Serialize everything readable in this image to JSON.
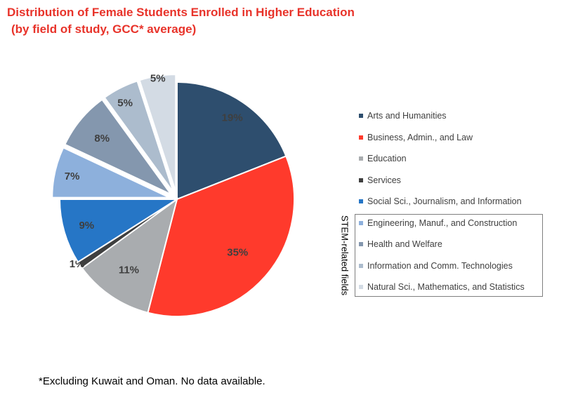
{
  "title": {
    "line1": "Distribution of Female Students Enrolled in Higher Education",
    "line2": "(by field of study, GCC* average)"
  },
  "chart_data": {
    "type": "pie",
    "title": "Distribution of Female Students Enrolled in Higher Education (by field of study, GCC* average)",
    "slices": [
      {
        "name": "Arts and Humanities",
        "value": 19,
        "label": "19%",
        "color": "#2e4e6e",
        "exploded": false
      },
      {
        "name": "Business, Admin., and Law",
        "value": 35,
        "label": "35%",
        "color": "#ff3a2c",
        "exploded": false
      },
      {
        "name": "Education",
        "value": 11,
        "label": "11%",
        "color": "#a9acaf",
        "exploded": false
      },
      {
        "name": "Services",
        "value": 1,
        "label": "1%",
        "color": "#3f3f3f",
        "exploded": false
      },
      {
        "name": "Social Sci., Journalism, and Information",
        "value": 9,
        "label": "9%",
        "color": "#2676c6",
        "exploded": false
      },
      {
        "name": "Engineering, Manuf., and Construction",
        "value": 7,
        "label": "7%",
        "color": "#8db0dc",
        "exploded": true
      },
      {
        "name": "Health and Welfare",
        "value": 8,
        "label": "8%",
        "color": "#8497ae",
        "exploded": true
      },
      {
        "name": "Information and Comm. Technologies",
        "value": 5,
        "label": "5%",
        "color": "#acbccd",
        "exploded": true
      },
      {
        "name": "Natural Sci., Mathematics, and Statistics",
        "value": 5,
        "label": "5%",
        "color": "#d3dbe4",
        "exploded": true
      }
    ],
    "legend_position": "right",
    "group_label": "STEM-related fields"
  },
  "footnote": "*Excluding Kuwait and Oman. No data available."
}
